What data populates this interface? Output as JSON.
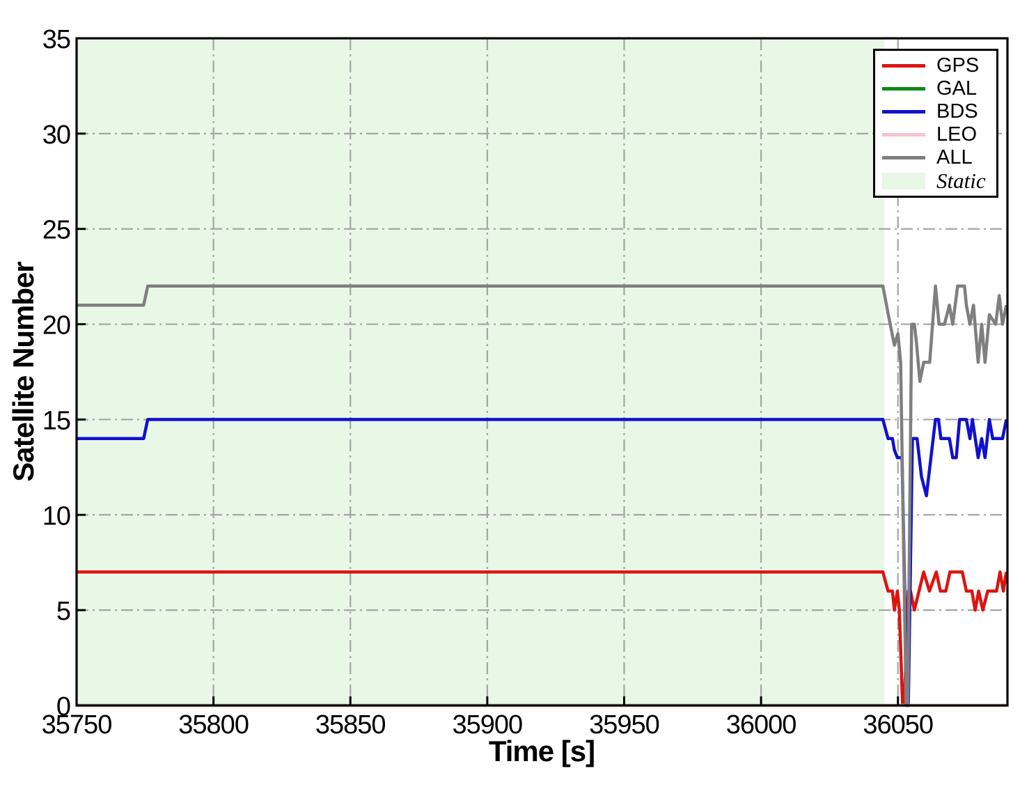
{
  "chart_data": {
    "type": "line",
    "title": "",
    "xlabel": "Time [s]",
    "ylabel": "Satellite Number",
    "xlim": [
      35750,
      36090
    ],
    "ylim": [
      0,
      35
    ],
    "xticks": [
      35750,
      35800,
      35850,
      35900,
      35950,
      36000,
      36050
    ],
    "yticks": [
      0,
      5,
      10,
      15,
      20,
      25,
      30,
      35
    ],
    "grid": {
      "on": true,
      "style": "dash-dot",
      "color": "#a5a5a5"
    },
    "static_region": {
      "label": "Static",
      "start": 35750,
      "end": 36045,
      "color": "#e8f7e6"
    },
    "legend_position": "top-right",
    "series": [
      {
        "name": "GPS",
        "color": "#dc1410",
        "points": [
          [
            35750,
            7
          ],
          [
            36044.5,
            7
          ],
          [
            36046.4,
            6
          ],
          [
            36048,
            6
          ],
          [
            36048.7,
            5
          ],
          [
            36049.8,
            6
          ],
          [
            36050.5,
            5
          ],
          [
            36051.7,
            0
          ],
          [
            36052.3,
            0
          ],
          [
            36053.8,
            6
          ],
          [
            36054.6,
            6
          ],
          [
            36056,
            5
          ],
          [
            36059.4,
            7
          ],
          [
            36061.5,
            6
          ],
          [
            36064,
            7
          ],
          [
            36065.5,
            6
          ],
          [
            36067.5,
            6
          ],
          [
            36069,
            7
          ],
          [
            36073.5,
            7
          ],
          [
            36075,
            6
          ],
          [
            36077,
            6
          ],
          [
            36078.2,
            5
          ],
          [
            36079.5,
            6
          ],
          [
            36081,
            5
          ],
          [
            36082.8,
            6
          ],
          [
            36086,
            6
          ],
          [
            36087.3,
            7
          ],
          [
            36088.5,
            6
          ],
          [
            36089.6,
            7
          ]
        ]
      },
      {
        "name": "GAL",
        "color": "#0c8a12",
        "points": [
          [
            35750,
            0
          ],
          [
            36089.6,
            0
          ]
        ]
      },
      {
        "name": "BDS",
        "color": "#1111cf",
        "points": [
          [
            35750,
            14
          ],
          [
            35774.5,
            14
          ],
          [
            35776,
            15
          ],
          [
            36044.5,
            15
          ],
          [
            36046.4,
            14
          ],
          [
            36048,
            14
          ],
          [
            36048.7,
            13.4
          ],
          [
            36049.8,
            13
          ],
          [
            36051.5,
            13
          ],
          [
            36053.3,
            0
          ],
          [
            36053.8,
            0
          ],
          [
            36055.3,
            14
          ],
          [
            36057,
            14
          ],
          [
            36058.6,
            12
          ],
          [
            36060.4,
            11
          ],
          [
            36063.7,
            15
          ],
          [
            36064.8,
            15
          ],
          [
            36065.7,
            14
          ],
          [
            36068.8,
            14
          ],
          [
            36070,
            13
          ],
          [
            36071.3,
            13
          ],
          [
            36072.5,
            15
          ],
          [
            36075,
            15
          ],
          [
            36076.3,
            14
          ],
          [
            36077.2,
            15
          ],
          [
            36079.3,
            13
          ],
          [
            36080.6,
            14
          ],
          [
            36081.8,
            13
          ],
          [
            36083.4,
            15
          ],
          [
            36084.6,
            14
          ],
          [
            36088.2,
            14
          ],
          [
            36089.6,
            15
          ]
        ]
      },
      {
        "name": "LEO",
        "color": "#f6c3cf",
        "points": [
          [
            35750,
            0
          ],
          [
            36089.6,
            0
          ]
        ]
      },
      {
        "name": "ALL",
        "color": "#7f7f7f",
        "points": [
          [
            35750,
            21
          ],
          [
            35774.5,
            21
          ],
          [
            35776,
            22
          ],
          [
            36044.5,
            22
          ],
          [
            36046.5,
            20.5
          ],
          [
            36048.7,
            18.9
          ],
          [
            36050,
            19.5
          ],
          [
            36051,
            18
          ],
          [
            36053,
            0
          ],
          [
            36053.6,
            0
          ],
          [
            36055,
            20
          ],
          [
            36056,
            20
          ],
          [
            36056.8,
            19
          ],
          [
            36058,
            17
          ],
          [
            36059.4,
            18
          ],
          [
            36061.6,
            18
          ],
          [
            36063.7,
            22
          ],
          [
            36065,
            20
          ],
          [
            36067,
            20
          ],
          [
            36068.8,
            21
          ],
          [
            36070,
            20
          ],
          [
            36071.8,
            22
          ],
          [
            36074.3,
            22
          ],
          [
            36075,
            21
          ],
          [
            36076.3,
            20
          ],
          [
            36077.6,
            21
          ],
          [
            36079.3,
            18
          ],
          [
            36080.6,
            20
          ],
          [
            36081.8,
            18
          ],
          [
            36083.4,
            20.5
          ],
          [
            36085.7,
            20
          ],
          [
            36087,
            21.5
          ],
          [
            36088.2,
            20
          ],
          [
            36089.6,
            21
          ]
        ]
      }
    ],
    "legend": {
      "entries": [
        {
          "label": "GPS",
          "type": "line",
          "color": "#dc1410"
        },
        {
          "label": "GAL",
          "type": "line",
          "color": "#0c8a12"
        },
        {
          "label": "BDS",
          "type": "line",
          "color": "#1111cf"
        },
        {
          "label": "LEO",
          "type": "line",
          "color": "#f6c3cf"
        },
        {
          "label": "ALL",
          "type": "line",
          "color": "#7f7f7f"
        },
        {
          "label": "Static",
          "type": "patch",
          "color": "#e8f7e6",
          "italic": true
        }
      ]
    }
  }
}
